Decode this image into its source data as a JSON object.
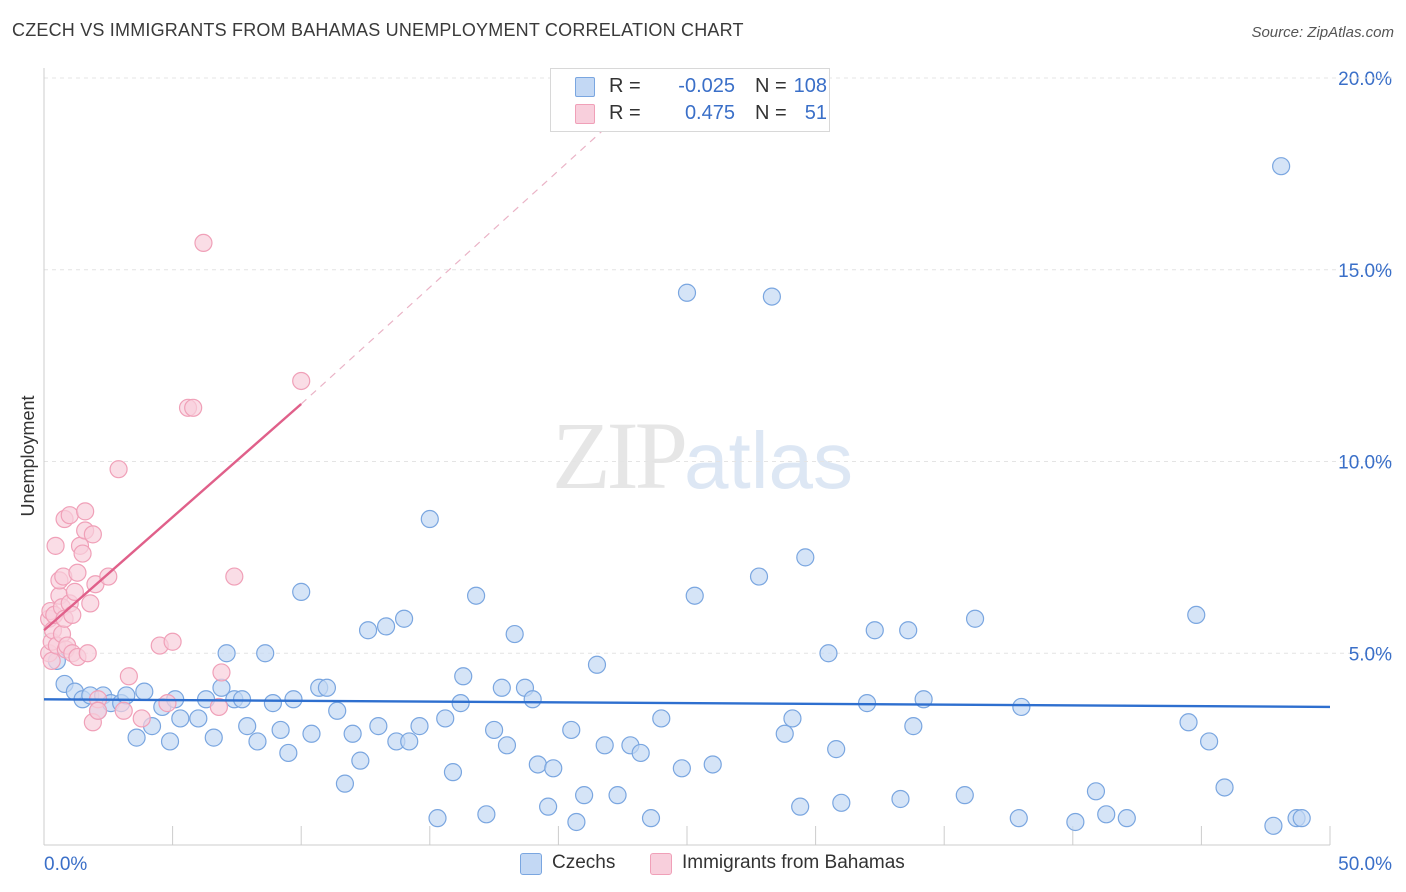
{
  "chart_data": {
    "type": "scatter",
    "title": "CZECH VS IMMIGRANTS FROM BAHAMAS UNEMPLOYMENT CORRELATION CHART",
    "source": "Source: ZipAtlas.com",
    "xlabel": "",
    "ylabel": "Unemployment",
    "xlim": [
      0,
      50
    ],
    "ylim": [
      0,
      20
    ],
    "x_tick_labels": [
      "0.0%",
      "50.0%"
    ],
    "y_tick_values": [
      5,
      10,
      15,
      20
    ],
    "y_tick_labels": [
      "5.0%",
      "10.0%",
      "15.0%",
      "20.0%"
    ],
    "grid": true,
    "legend_position": "top-center",
    "watermark": {
      "zip": "ZIP",
      "atlas": "atlas"
    },
    "legend": {
      "r_label": "R =",
      "n_label": "N =",
      "rows": [
        {
          "r": "-0.025",
          "n": "108"
        },
        {
          "r": "0.475",
          "n": "51"
        }
      ]
    },
    "series": [
      {
        "name": "Czechs",
        "color": "#7aa6e0",
        "fill": "#c3d8f4",
        "trend_color": "#2e6fcf",
        "trend": [
          [
            0,
            3.8
          ],
          [
            50,
            3.6
          ]
        ],
        "points": [
          [
            0.5,
            4.8
          ],
          [
            0.8,
            4.2
          ],
          [
            1.2,
            4.0
          ],
          [
            1.5,
            3.8
          ],
          [
            1.8,
            3.9
          ],
          [
            2.1,
            3.5
          ],
          [
            2.3,
            3.9
          ],
          [
            2.6,
            3.7
          ],
          [
            3.0,
            3.7
          ],
          [
            3.2,
            3.9
          ],
          [
            3.6,
            2.8
          ],
          [
            3.9,
            4.0
          ],
          [
            4.2,
            3.1
          ],
          [
            4.6,
            3.6
          ],
          [
            4.9,
            2.7
          ],
          [
            5.1,
            3.8
          ],
          [
            5.3,
            3.3
          ],
          [
            6.0,
            3.3
          ],
          [
            6.3,
            3.8
          ],
          [
            6.6,
            2.8
          ],
          [
            6.9,
            4.1
          ],
          [
            7.1,
            5.0
          ],
          [
            7.4,
            3.8
          ],
          [
            7.7,
            3.8
          ],
          [
            7.9,
            3.1
          ],
          [
            8.3,
            2.7
          ],
          [
            8.6,
            5.0
          ],
          [
            8.9,
            3.7
          ],
          [
            9.2,
            3.0
          ],
          [
            9.5,
            2.4
          ],
          [
            9.7,
            3.8
          ],
          [
            10.0,
            6.6
          ],
          [
            10.4,
            2.9
          ],
          [
            10.7,
            4.1
          ],
          [
            11.0,
            4.1
          ],
          [
            11.4,
            3.5
          ],
          [
            11.7,
            1.6
          ],
          [
            12.0,
            2.9
          ],
          [
            12.3,
            2.2
          ],
          [
            12.6,
            5.6
          ],
          [
            13.0,
            3.1
          ],
          [
            13.3,
            5.7
          ],
          [
            13.7,
            2.7
          ],
          [
            14.0,
            5.9
          ],
          [
            14.2,
            2.7
          ],
          [
            14.6,
            3.1
          ],
          [
            15.0,
            8.5
          ],
          [
            15.3,
            0.7
          ],
          [
            15.6,
            3.3
          ],
          [
            15.9,
            1.9
          ],
          [
            16.2,
            3.7
          ],
          [
            16.3,
            4.4
          ],
          [
            16.8,
            6.5
          ],
          [
            17.2,
            0.8
          ],
          [
            17.5,
            3.0
          ],
          [
            17.8,
            4.1
          ],
          [
            18.0,
            2.6
          ],
          [
            18.3,
            5.5
          ],
          [
            18.7,
            4.1
          ],
          [
            19.0,
            3.8
          ],
          [
            19.2,
            2.1
          ],
          [
            19.6,
            1.0
          ],
          [
            19.8,
            2.0
          ],
          [
            20.5,
            3.0
          ],
          [
            20.7,
            0.6
          ],
          [
            21.0,
            1.3
          ],
          [
            21.5,
            4.7
          ],
          [
            21.8,
            2.6
          ],
          [
            22.3,
            1.3
          ],
          [
            22.8,
            2.6
          ],
          [
            23.2,
            2.4
          ],
          [
            23.6,
            0.7
          ],
          [
            24.0,
            3.3
          ],
          [
            24.8,
            2.0
          ],
          [
            25.0,
            14.4
          ],
          [
            25.3,
            6.5
          ],
          [
            26.0,
            2.1
          ],
          [
            27.8,
            7.0
          ],
          [
            28.3,
            14.3
          ],
          [
            28.8,
            2.9
          ],
          [
            29.1,
            3.3
          ],
          [
            29.4,
            1.0
          ],
          [
            29.6,
            7.5
          ],
          [
            30.5,
            5.0
          ],
          [
            30.8,
            2.5
          ],
          [
            31.0,
            1.1
          ],
          [
            32.0,
            3.7
          ],
          [
            32.3,
            5.6
          ],
          [
            33.3,
            1.2
          ],
          [
            33.6,
            5.6
          ],
          [
            33.8,
            3.1
          ],
          [
            34.2,
            3.8
          ],
          [
            35.8,
            1.3
          ],
          [
            36.2,
            5.9
          ],
          [
            37.9,
            0.7
          ],
          [
            38.0,
            3.6
          ],
          [
            40.1,
            0.6
          ],
          [
            40.9,
            1.4
          ],
          [
            41.3,
            0.8
          ],
          [
            42.1,
            0.7
          ],
          [
            44.5,
            3.2
          ],
          [
            44.8,
            6.0
          ],
          [
            45.3,
            2.7
          ],
          [
            45.9,
            1.5
          ],
          [
            47.8,
            0.5
          ],
          [
            48.1,
            17.7
          ],
          [
            48.7,
            0.7
          ],
          [
            48.9,
            0.7
          ]
        ]
      },
      {
        "name": "Immigrants from Bahamas",
        "color": "#f0a0b8",
        "fill": "#f8cfdc",
        "trend_color": "#e0608a",
        "trend": [
          [
            0,
            5.6
          ],
          [
            10,
            11.5
          ]
        ],
        "trend_dashed": [
          [
            10,
            11.5
          ],
          [
            22,
            18.8
          ]
        ],
        "points": [
          [
            0.2,
            5.0
          ],
          [
            0.2,
            5.9
          ],
          [
            0.25,
            6.1
          ],
          [
            0.3,
            5.3
          ],
          [
            0.3,
            4.8
          ],
          [
            0.35,
            5.6
          ],
          [
            0.4,
            6.0
          ],
          [
            0.45,
            7.8
          ],
          [
            0.5,
            5.2
          ],
          [
            0.6,
            6.5
          ],
          [
            0.6,
            6.9
          ],
          [
            0.7,
            5.5
          ],
          [
            0.7,
            6.2
          ],
          [
            0.75,
            7.0
          ],
          [
            0.8,
            8.5
          ],
          [
            0.8,
            5.9
          ],
          [
            0.85,
            5.1
          ],
          [
            0.9,
            5.2
          ],
          [
            1.0,
            6.3
          ],
          [
            1.0,
            8.6
          ],
          [
            1.1,
            6.0
          ],
          [
            1.1,
            5.0
          ],
          [
            1.2,
            6.6
          ],
          [
            1.3,
            7.1
          ],
          [
            1.3,
            4.9
          ],
          [
            1.4,
            7.8
          ],
          [
            1.5,
            7.6
          ],
          [
            1.6,
            8.7
          ],
          [
            1.6,
            8.2
          ],
          [
            1.7,
            5.0
          ],
          [
            1.8,
            6.3
          ],
          [
            1.9,
            8.1
          ],
          [
            1.9,
            3.2
          ],
          [
            2.0,
            6.8
          ],
          [
            2.1,
            3.8
          ],
          [
            2.1,
            3.5
          ],
          [
            2.5,
            7.0
          ],
          [
            2.9,
            9.8
          ],
          [
            3.1,
            3.5
          ],
          [
            3.3,
            4.4
          ],
          [
            3.8,
            3.3
          ],
          [
            4.5,
            5.2
          ],
          [
            4.8,
            3.7
          ],
          [
            5.0,
            5.3
          ],
          [
            5.6,
            11.4
          ],
          [
            5.8,
            11.4
          ],
          [
            6.2,
            15.7
          ],
          [
            6.8,
            3.6
          ],
          [
            6.9,
            4.5
          ],
          [
            7.4,
            7.0
          ],
          [
            10.0,
            12.1
          ]
        ]
      }
    ]
  }
}
